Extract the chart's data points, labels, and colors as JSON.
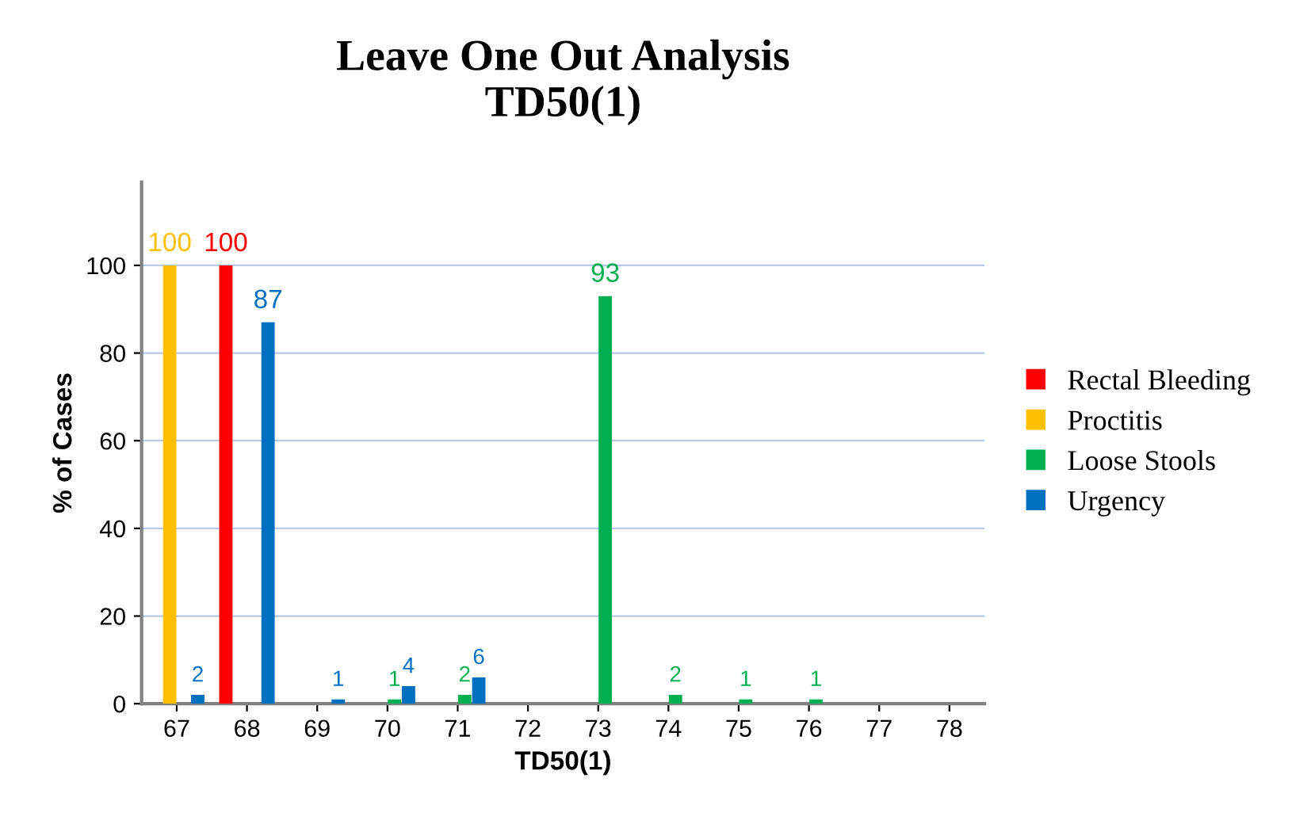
{
  "chart_data": {
    "type": "bar",
    "title": "Leave One Out Analysis\nTD50(1)",
    "xlabel": "TD50(1)",
    "ylabel": "% of Cases",
    "categories": [
      "67",
      "68",
      "69",
      "70",
      "71",
      "72",
      "73",
      "74",
      "75",
      "76",
      "77",
      "78"
    ],
    "series": [
      {
        "name": "Rectal Bleeding",
        "color": "#ff0000",
        "values": [
          0,
          100,
          0,
          0,
          0,
          0,
          0,
          0,
          0,
          0,
          0,
          0
        ],
        "value_labels": [
          null,
          "100",
          null,
          null,
          null,
          null,
          null,
          null,
          null,
          null,
          null,
          null
        ]
      },
      {
        "name": "Proctitis",
        "color": "#ffc000",
        "values": [
          100,
          0,
          0,
          0,
          0,
          0,
          0,
          0,
          0,
          0,
          0,
          0
        ],
        "value_labels": [
          "100",
          null,
          null,
          null,
          null,
          null,
          null,
          null,
          null,
          null,
          null,
          null
        ]
      },
      {
        "name": "Loose Stools",
        "color": "#00b050",
        "values": [
          0,
          0,
          0,
          1,
          2,
          0,
          93,
          2,
          1,
          1,
          0,
          0
        ],
        "value_labels": [
          null,
          null,
          null,
          "1",
          "2",
          null,
          "93",
          "2",
          "1",
          "1",
          null,
          null
        ]
      },
      {
        "name": "Urgency",
        "color": "#0070c0",
        "values": [
          2,
          87,
          1,
          4,
          6,
          0,
          0,
          0,
          0,
          0,
          0,
          0
        ],
        "value_labels": [
          "2",
          "87",
          "1",
          "4",
          "6",
          null,
          null,
          null,
          null,
          null,
          null,
          null
        ]
      }
    ],
    "ylim": [
      0,
      119
    ],
    "yticks": [
      0,
      20,
      40,
      60,
      80,
      100
    ],
    "grid": "y",
    "legend": "right"
  }
}
